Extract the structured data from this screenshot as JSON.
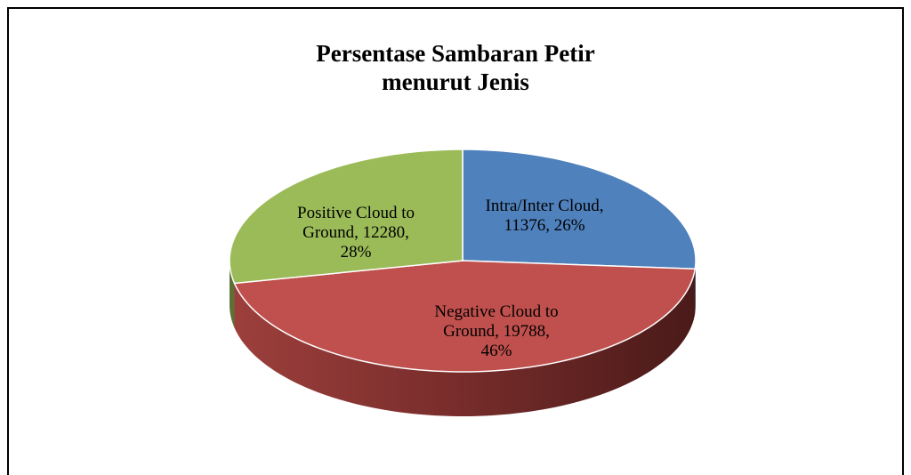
{
  "chart_data": {
    "type": "pie3d",
    "title": "Persentase Sambaran Petir\nmenurut Jenis",
    "values": [
      11376,
      19788,
      12280
    ],
    "value_labels": [
      "Intra/Inter Cloud,\n11376, 26%",
      "Negative Cloud to\nGround, 19788,\n46%",
      "Positive Cloud to\nGround, 12280,\n28%"
    ],
    "colors": [
      "#4f81bd",
      "#c0504d",
      "#9bbb59"
    ]
  }
}
